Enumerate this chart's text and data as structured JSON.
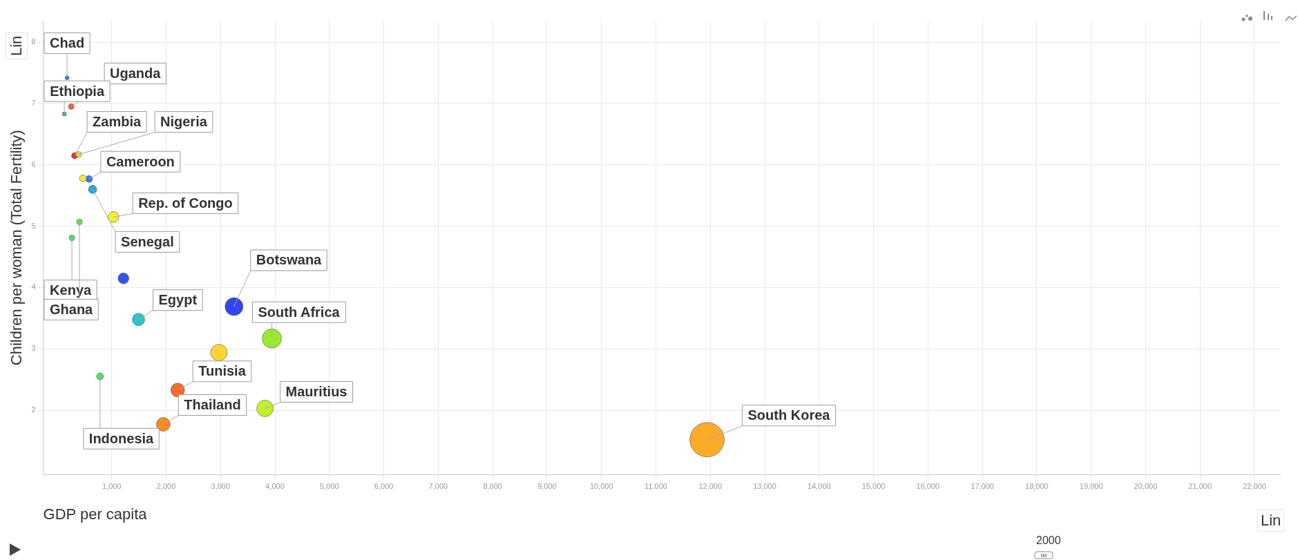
{
  "chart_data": {
    "type": "bubble",
    "xlabel": "GDP per capita",
    "ylabel": "Children per woman (Total Fertility)",
    "x": [
      179,
      255,
      129,
      318,
      394,
      583,
      470,
      648,
      1030,
      406,
      268,
      1215,
      1492,
      3247,
      3942,
      2970,
      2212,
      785,
      1947,
      3816,
      11940
    ],
    "values": [
      7.42,
      6.95,
      6.83,
      6.15,
      6.17,
      5.77,
      5.78,
      5.6,
      5.15,
      5.07,
      4.81,
      4.15,
      3.48,
      3.69,
      3.17,
      2.94,
      2.33,
      2.55,
      1.77,
      2.03,
      1.52
    ],
    "sizes": [
      0.014,
      0.026,
      0.014,
      0.032,
      0.026,
      0.04,
      0.04,
      0.058,
      0.1,
      0.026,
      0.026,
      0.1,
      0.13,
      0.27,
      0.31,
      0.23,
      0.16,
      0.04,
      0.16,
      0.23,
      1
    ],
    "colors": [
      "#3a7bd5",
      "#e8603c",
      "#2fbf8f",
      "#e8322a",
      "#d9e23a",
      "#3a78e8",
      "#f2e836",
      "#2aa8e0",
      "#f0f030",
      "#66dd55",
      "#4ddb6a",
      "#3355ee",
      "#2cc4c4",
      "#3344f0",
      "#99e830",
      "#fcd535",
      "#f86a28",
      "#55e066",
      "#fb8a22",
      "#c4f02a",
      "#fbab2a"
    ],
    "xlim": [
      -260,
      22470
    ],
    "xticks": [
      {
        "value": 1000,
        "label": "1,000"
      },
      {
        "value": 2000,
        "label": "2,000"
      },
      {
        "value": 3000,
        "label": "3,000"
      },
      {
        "value": 4000,
        "label": "4,000"
      },
      {
        "value": 5000,
        "label": "5,000"
      },
      {
        "value": 6000,
        "label": "6,000"
      },
      {
        "value": 7000,
        "label": "7,000"
      },
      {
        "value": 8000,
        "label": "8,000"
      },
      {
        "value": 9000,
        "label": "9,000"
      },
      {
        "value": 10000,
        "label": "10,000"
      },
      {
        "value": 11000,
        "label": "11,000"
      },
      {
        "value": 12000,
        "label": "12,000"
      },
      {
        "value": 13000,
        "label": "13,000"
      },
      {
        "value": 14000,
        "label": "14,000"
      },
      {
        "value": 15000,
        "label": "15,000"
      },
      {
        "value": 16000,
        "label": "16,000"
      },
      {
        "value": 17000,
        "label": "17,000"
      },
      {
        "value": 18000,
        "label": "18,000"
      },
      {
        "value": 19000,
        "label": "19,000"
      },
      {
        "value": 20000,
        "label": "20,000"
      },
      {
        "value": 21000,
        "label": "21,000"
      },
      {
        "value": 22000,
        "label": "22,000"
      }
    ],
    "ylim": [
      0.95,
      8.35
    ],
    "yticks": [
      2,
      3,
      4,
      5,
      6,
      7,
      8
    ],
    "grid": true,
    "legend": false,
    "annotations": [
      {
        "text": "Chad",
        "x": 179,
        "y": 7.42
      },
      {
        "text": "Uganda",
        "x": 255,
        "y": 6.95
      },
      {
        "text": "Ethiopia",
        "x": 129,
        "y": 6.83
      },
      {
        "text": "Zambia",
        "x": 318,
        "y": 6.15
      },
      {
        "text": "Nigeria",
        "x": 394,
        "y": 6.17
      },
      {
        "text": "Cameroon",
        "x": 583,
        "y": 5.77
      },
      {
        "text": "Rep. of Congo",
        "x": 1030,
        "y": 5.15
      },
      {
        "text": "Senegal",
        "x": 648,
        "y": 5.6
      },
      {
        "text": "Kenya",
        "x": 268,
        "y": 4.81
      },
      {
        "text": "Ghana",
        "x": 406,
        "y": 5.07
      },
      {
        "text": "Botswana",
        "x": 3247,
        "y": 3.69
      },
      {
        "text": "Egypt",
        "x": 1492,
        "y": 3.48
      },
      {
        "text": "South Africa",
        "x": 3942,
        "y": 3.17
      },
      {
        "text": "Tunisia",
        "x": 2212,
        "y": 2.33
      },
      {
        "text": "Thailand",
        "x": 1947,
        "y": 1.77
      },
      {
        "text": "Mauritius",
        "x": 3816,
        "y": 2.03
      },
      {
        "text": "Indonesia",
        "x": 785,
        "y": 2.55
      },
      {
        "text": "South Korea",
        "x": 11940,
        "y": 1.52
      },
      "Lin",
      "Lin",
      "2000"
    ]
  }
}
